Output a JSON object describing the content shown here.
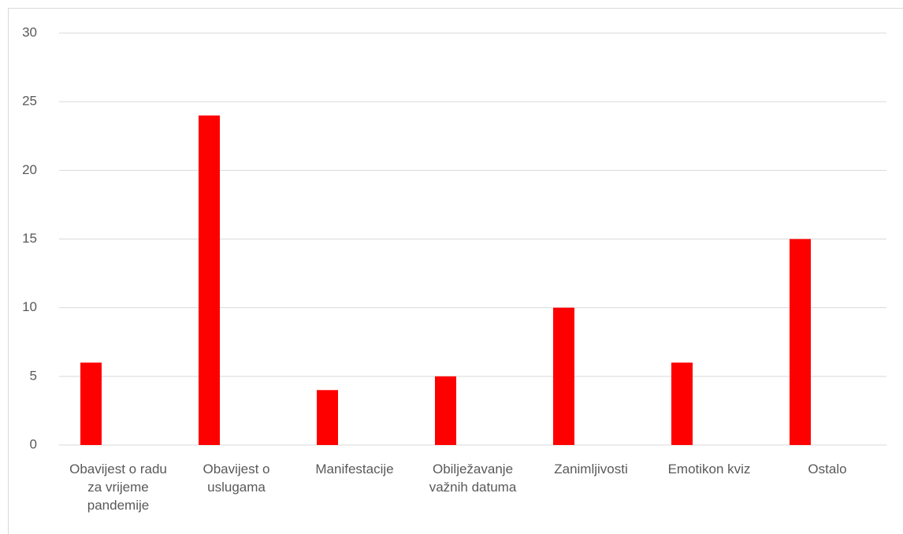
{
  "chart_data": {
    "type": "bar",
    "categories": [
      "Obavijest o radu za vrijeme pandemije",
      "Obavijest o uslugama",
      "Manifestacije",
      "Obilježavanje važnih datuma",
      "Zanimljivosti",
      "Emotikon kviz",
      "Ostalo"
    ],
    "values": [
      6,
      24,
      4,
      5,
      10,
      6,
      15
    ],
    "color": "#ff0000",
    "ylim": [
      0,
      30
    ],
    "yticks": [
      0,
      5,
      10,
      15,
      20,
      25,
      30
    ],
    "grid": true
  }
}
